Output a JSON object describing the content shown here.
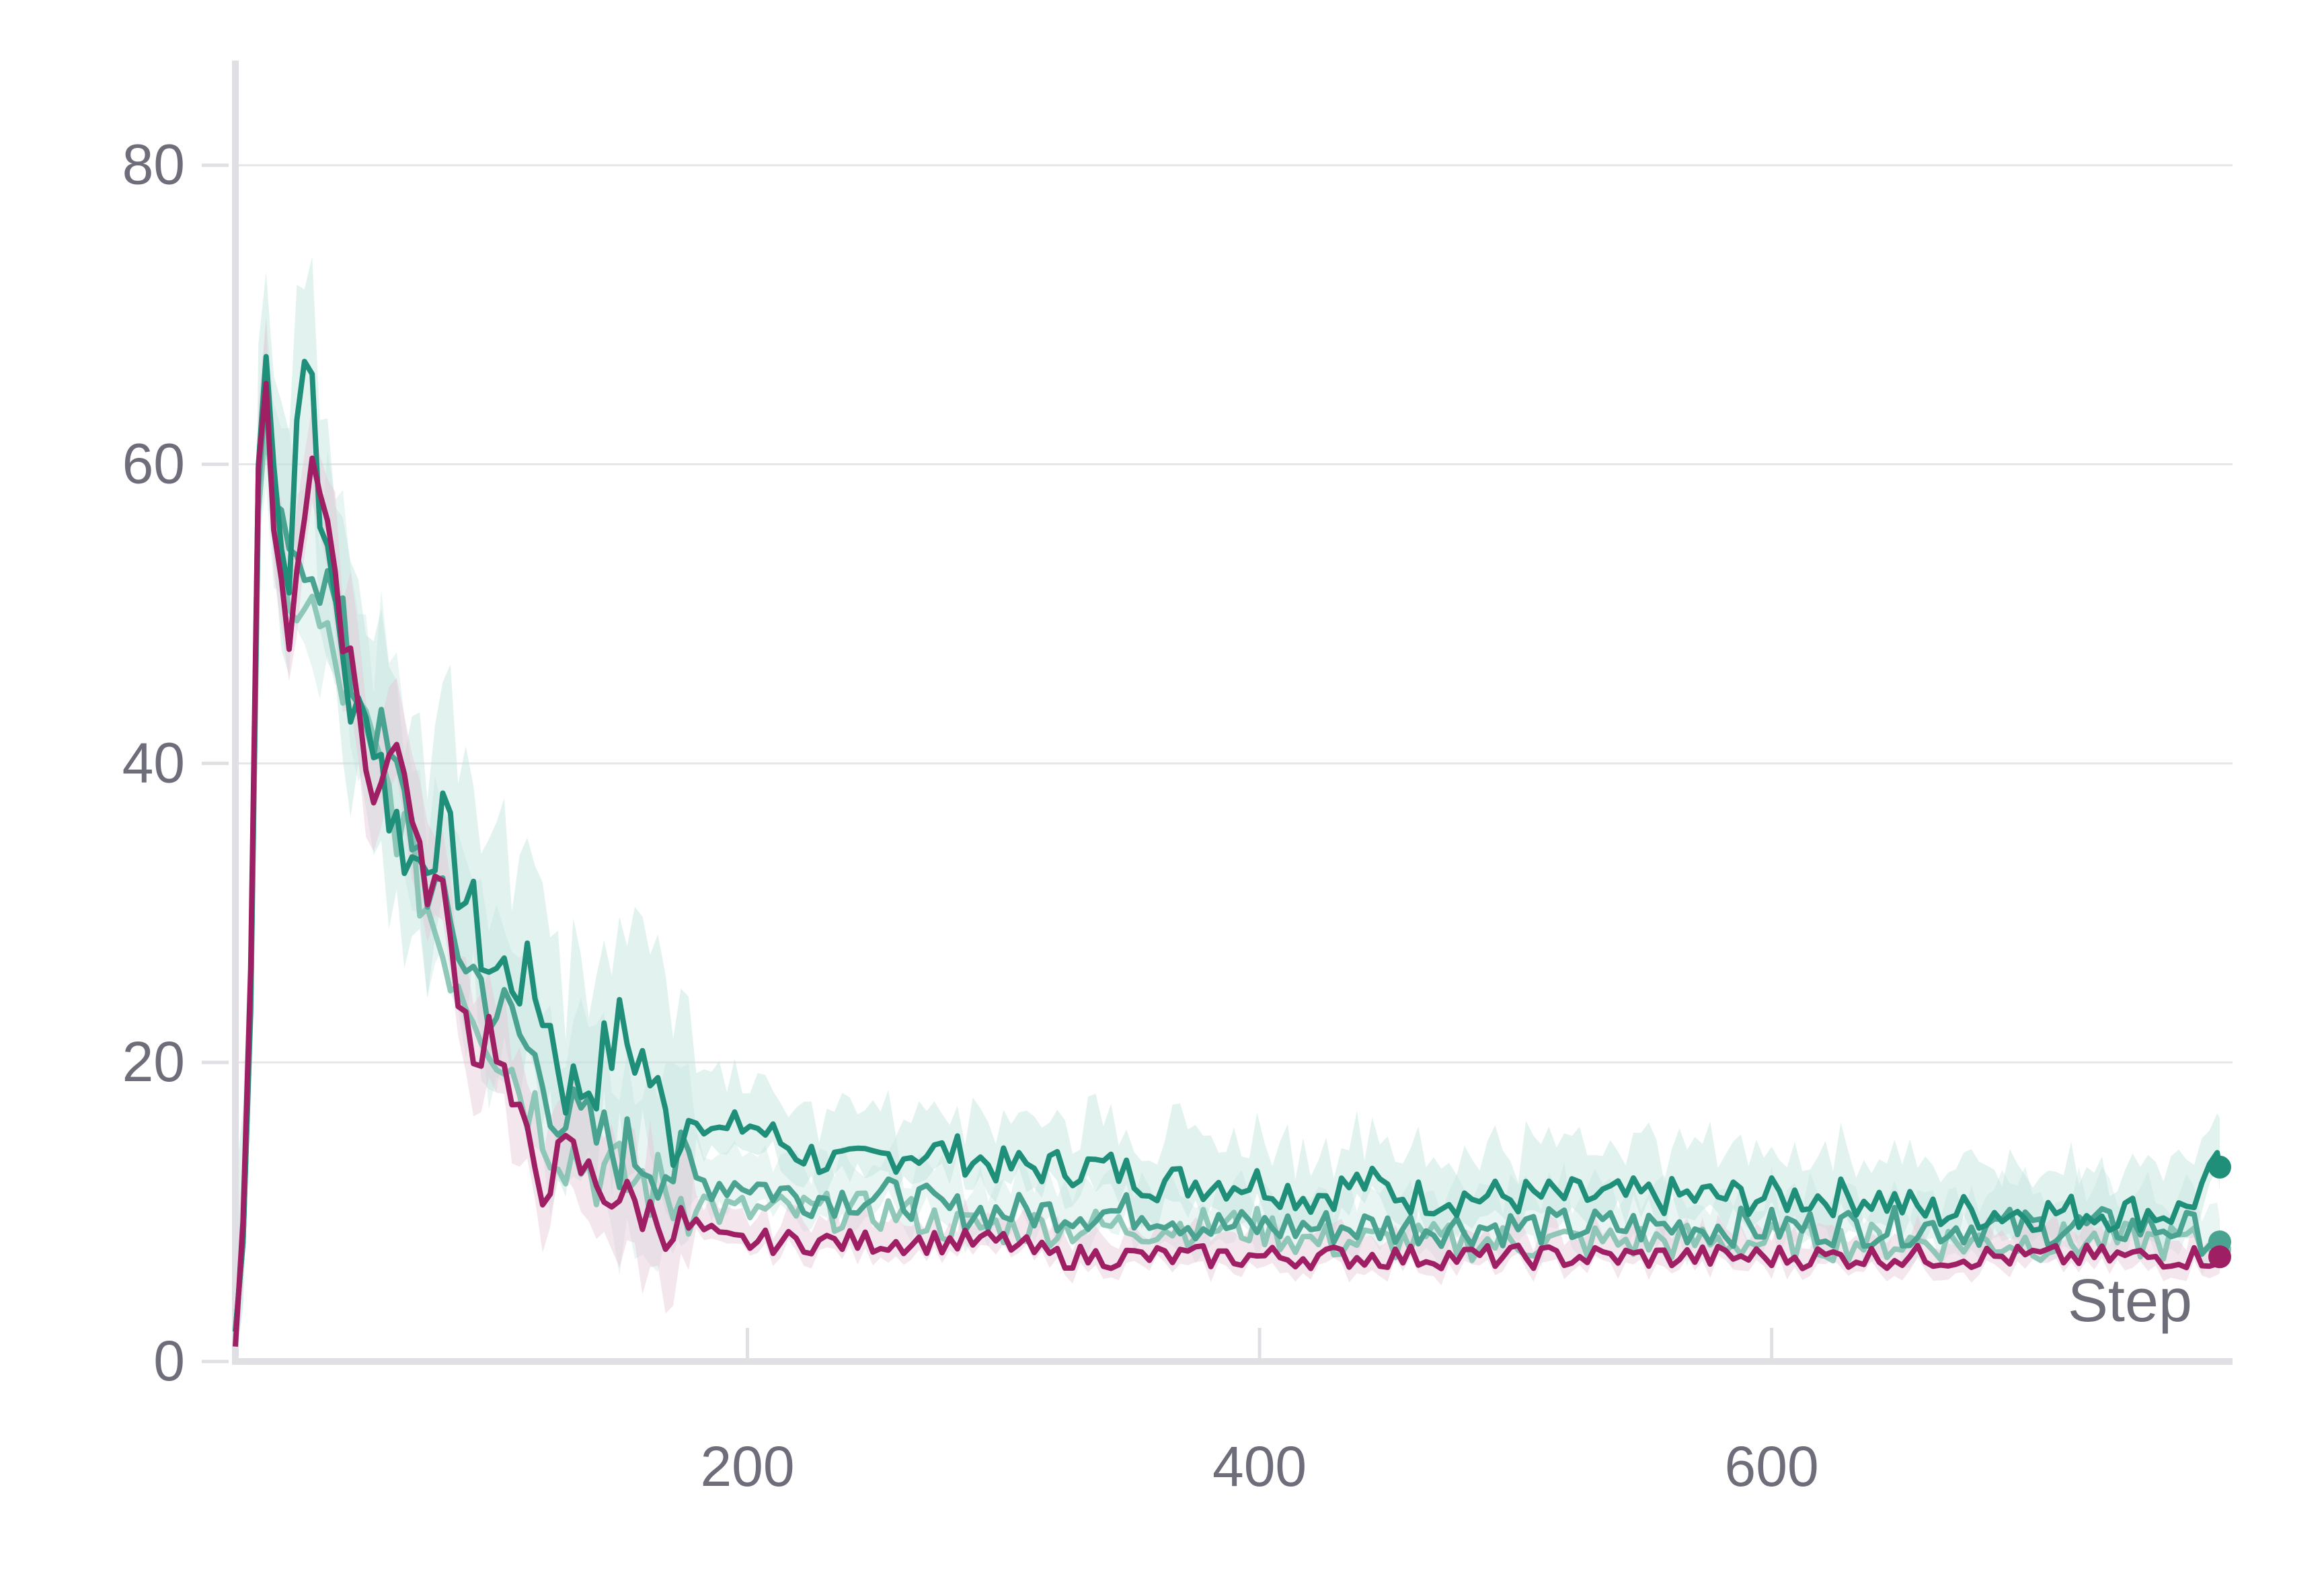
{
  "chart_data": {
    "type": "line",
    "xlabel": "Step",
    "ylabel": "",
    "xlim": [
      0,
      780
    ],
    "ylim": [
      0,
      87
    ],
    "x_ticks": [
      200,
      400,
      600
    ],
    "y_ticks": [
      0,
      20,
      40,
      60,
      80
    ],
    "grid": "horizontal",
    "legend": "none",
    "colors": {
      "magenta": "#9e1f63",
      "teal_dark": "#1f8f7a",
      "teal_mid": "#4aa391",
      "teal_light": "#7cbfae",
      "band": "#bfe3dc",
      "band_magenta": "#e7c8d8",
      "grid": "#e6e6ea",
      "axis": "#e0e0e4",
      "text": "#6e6d7a"
    },
    "series": [
      {
        "color": "#1f8f7a",
        "points": [
          [
            0,
            2
          ],
          [
            5,
            12
          ],
          [
            10,
            72
          ],
          [
            15,
            60
          ],
          [
            20,
            50
          ],
          [
            25,
            68
          ],
          [
            30,
            66
          ],
          [
            35,
            53
          ],
          [
            40,
            50
          ],
          [
            45,
            44
          ],
          [
            50,
            42
          ],
          [
            55,
            43
          ],
          [
            60,
            37
          ],
          [
            70,
            33
          ],
          [
            80,
            36
          ],
          [
            90,
            31
          ],
          [
            100,
            26
          ],
          [
            110,
            26
          ],
          [
            120,
            24
          ],
          [
            130,
            18
          ],
          [
            140,
            19
          ],
          [
            150,
            22
          ],
          [
            160,
            20
          ],
          [
            170,
            15
          ],
          [
            180,
            17
          ],
          [
            190,
            15
          ],
          [
            200,
            16
          ],
          [
            220,
            14
          ],
          [
            240,
            13
          ],
          [
            260,
            14
          ],
          [
            280,
            14
          ],
          [
            300,
            13
          ],
          [
            320,
            13
          ],
          [
            340,
            13
          ],
          [
            360,
            12
          ],
          [
            380,
            12
          ],
          [
            400,
            12
          ],
          [
            420,
            11
          ],
          [
            440,
            12
          ],
          [
            460,
            11
          ],
          [
            480,
            11
          ],
          [
            500,
            11
          ],
          [
            520,
            11
          ],
          [
            540,
            11
          ],
          [
            560,
            11
          ],
          [
            580,
            11
          ],
          [
            600,
            11
          ],
          [
            620,
            11
          ],
          [
            640,
            11
          ],
          [
            660,
            10
          ],
          [
            680,
            10
          ],
          [
            700,
            10
          ],
          [
            720,
            10
          ],
          [
            740,
            10
          ],
          [
            760,
            10
          ],
          [
            775,
            13
          ]
        ]
      },
      {
        "color": "#4aa391",
        "points": [
          [
            0,
            2
          ],
          [
            5,
            12
          ],
          [
            10,
            70
          ],
          [
            15,
            58
          ],
          [
            20,
            52
          ],
          [
            25,
            55
          ],
          [
            30,
            54
          ],
          [
            35,
            52
          ],
          [
            40,
            50
          ],
          [
            45,
            46
          ],
          [
            50,
            44
          ],
          [
            55,
            42
          ],
          [
            60,
            40
          ],
          [
            70,
            35
          ],
          [
            80,
            30
          ],
          [
            90,
            27
          ],
          [
            100,
            24
          ],
          [
            110,
            22
          ],
          [
            120,
            19
          ],
          [
            130,
            16
          ],
          [
            140,
            15
          ],
          [
            150,
            14
          ],
          [
            160,
            14
          ],
          [
            170,
            13
          ],
          [
            180,
            12
          ],
          [
            190,
            12
          ],
          [
            200,
            12
          ],
          [
            220,
            11
          ],
          [
            240,
            11
          ],
          [
            260,
            11
          ],
          [
            280,
            10
          ],
          [
            300,
            10
          ],
          [
            320,
            10
          ],
          [
            340,
            10
          ],
          [
            360,
            10
          ],
          [
            380,
            9
          ],
          [
            400,
            9
          ],
          [
            420,
            9
          ],
          [
            440,
            9
          ],
          [
            460,
            9
          ],
          [
            480,
            9
          ],
          [
            500,
            9
          ],
          [
            520,
            9
          ],
          [
            540,
            9
          ],
          [
            560,
            9
          ],
          [
            580,
            9
          ],
          [
            600,
            9
          ],
          [
            620,
            9
          ],
          [
            640,
            9
          ],
          [
            660,
            9
          ],
          [
            680,
            9
          ],
          [
            700,
            9
          ],
          [
            720,
            9
          ],
          [
            740,
            9
          ],
          [
            760,
            9
          ],
          [
            775,
            8
          ]
        ]
      },
      {
        "color": "#7cbfae",
        "points": [
          [
            0,
            2
          ],
          [
            5,
            12
          ],
          [
            10,
            68
          ],
          [
            15,
            55
          ],
          [
            20,
            48
          ],
          [
            25,
            52
          ],
          [
            30,
            50
          ],
          [
            35,
            48
          ],
          [
            40,
            46
          ],
          [
            45,
            44
          ],
          [
            50,
            42
          ],
          [
            55,
            40
          ],
          [
            60,
            38
          ],
          [
            70,
            33
          ],
          [
            80,
            28
          ],
          [
            90,
            25
          ],
          [
            100,
            22
          ],
          [
            110,
            19
          ],
          [
            120,
            16
          ],
          [
            130,
            14
          ],
          [
            140,
            13
          ],
          [
            150,
            12
          ],
          [
            160,
            12
          ],
          [
            170,
            11
          ],
          [
            180,
            11
          ],
          [
            190,
            10
          ],
          [
            200,
            10
          ],
          [
            220,
            10
          ],
          [
            240,
            10
          ],
          [
            260,
            10
          ],
          [
            280,
            9
          ],
          [
            300,
            9
          ],
          [
            320,
            9
          ],
          [
            340,
            9
          ],
          [
            360,
            9
          ],
          [
            380,
            9
          ],
          [
            400,
            9
          ],
          [
            420,
            8
          ],
          [
            440,
            8
          ],
          [
            460,
            8
          ],
          [
            480,
            8
          ],
          [
            500,
            8
          ],
          [
            520,
            8
          ],
          [
            540,
            8
          ],
          [
            560,
            8
          ],
          [
            580,
            8
          ],
          [
            600,
            8
          ],
          [
            620,
            8
          ],
          [
            640,
            8
          ],
          [
            660,
            8
          ],
          [
            680,
            8
          ],
          [
            700,
            8
          ],
          [
            720,
            8
          ],
          [
            740,
            8
          ],
          [
            760,
            8
          ],
          [
            775,
            7.5
          ]
        ]
      },
      {
        "color": "#9e1f63",
        "points": [
          [
            0,
            1
          ],
          [
            5,
            15
          ],
          [
            10,
            71
          ],
          [
            15,
            57
          ],
          [
            20,
            47
          ],
          [
            25,
            55
          ],
          [
            30,
            61
          ],
          [
            35,
            56
          ],
          [
            40,
            50
          ],
          [
            45,
            48
          ],
          [
            50,
            41
          ],
          [
            55,
            38
          ],
          [
            60,
            40
          ],
          [
            65,
            42
          ],
          [
            70,
            34
          ],
          [
            75,
            32
          ],
          [
            80,
            32
          ],
          [
            85,
            27
          ],
          [
            90,
            23
          ],
          [
            95,
            20
          ],
          [
            100,
            23
          ],
          [
            105,
            19
          ],
          [
            110,
            16
          ],
          [
            115,
            14
          ],
          [
            120,
            12
          ],
          [
            125,
            13
          ],
          [
            130,
            14
          ],
          [
            135,
            13
          ],
          [
            140,
            12
          ],
          [
            150,
            11
          ],
          [
            160,
            10
          ],
          [
            170,
            9
          ],
          [
            180,
            9
          ],
          [
            190,
            8
          ],
          [
            200,
            8
          ],
          [
            220,
            8
          ],
          [
            240,
            8
          ],
          [
            260,
            8
          ],
          [
            280,
            8
          ],
          [
            300,
            8
          ],
          [
            320,
            7
          ],
          [
            340,
            7
          ],
          [
            360,
            7
          ],
          [
            380,
            7
          ],
          [
            400,
            7
          ],
          [
            420,
            7
          ],
          [
            440,
            7
          ],
          [
            460,
            7
          ],
          [
            480,
            7
          ],
          [
            500,
            7
          ],
          [
            520,
            7
          ],
          [
            540,
            7
          ],
          [
            560,
            7
          ],
          [
            580,
            7
          ],
          [
            600,
            7
          ],
          [
            620,
            7
          ],
          [
            640,
            7
          ],
          [
            660,
            7
          ],
          [
            680,
            7
          ],
          [
            700,
            7
          ],
          [
            720,
            7
          ],
          [
            740,
            7
          ],
          [
            760,
            7
          ],
          [
            775,
            7
          ]
        ]
      }
    ]
  }
}
